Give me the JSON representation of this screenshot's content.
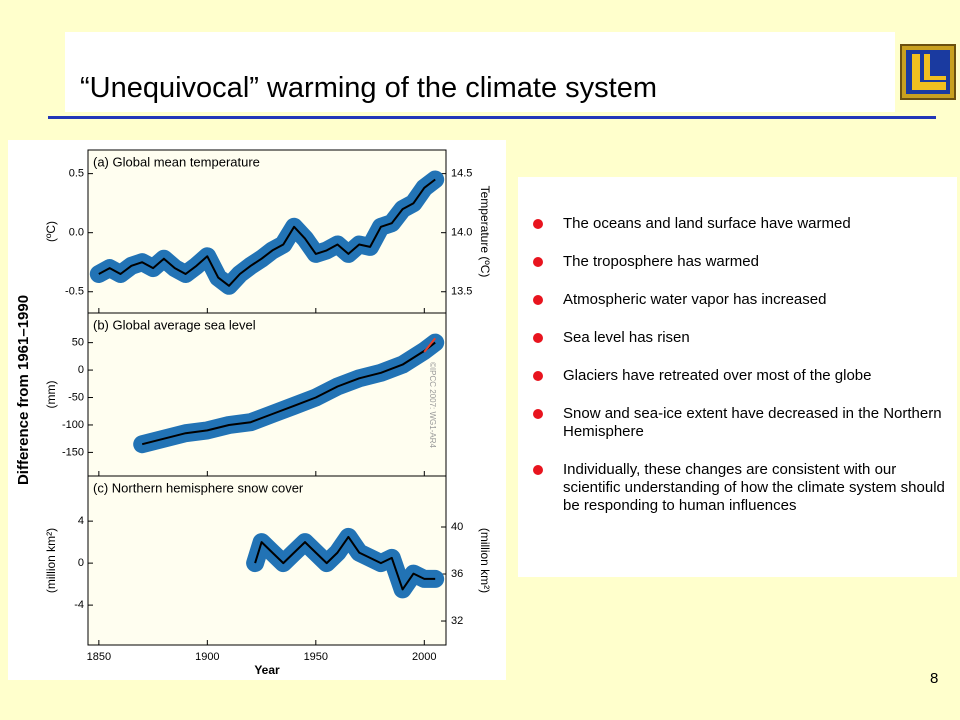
{
  "header": {
    "title": "“Unequivocal”  warming of the climate system"
  },
  "bullets": [
    "The oceans and land surface have warmed",
    "The troposphere has warmed",
    "Atmospheric water vapor has increased",
    "Sea level has risen",
    "Glaciers have retreated over most of the globe",
    "Snow and sea-ice extent have decreased in the Northern Hemisphere",
    "Individually, these changes are consistent with our scientific understanding of how the climate system should be responding to human influences"
  ],
  "page_number": "8",
  "figure": {
    "ylabel": "Difference from 1961–1990",
    "watermark": "©IPCC 2007: WG1-AR4"
  },
  "chart_data": [
    {
      "type": "line",
      "title": "(a) Global mean temperature",
      "ylabel": "(ºC)",
      "y2label": "Temperature (ºC)",
      "x": [
        1850,
        1855,
        1860,
        1865,
        1870,
        1875,
        1880,
        1885,
        1890,
        1895,
        1900,
        1905,
        1910,
        1915,
        1920,
        1925,
        1930,
        1935,
        1940,
        1945,
        1950,
        1955,
        1960,
        1965,
        1970,
        1975,
        1980,
        1985,
        1990,
        1995,
        2000,
        2005
      ],
      "series": [
        {
          "color": "#000000",
          "values": [
            -0.35,
            -0.3,
            -0.35,
            -0.28,
            -0.25,
            -0.3,
            -0.22,
            -0.3,
            -0.35,
            -0.28,
            -0.2,
            -0.38,
            -0.45,
            -0.35,
            -0.28,
            -0.22,
            -0.15,
            -0.1,
            0.05,
            -0.05,
            -0.18,
            -0.15,
            -0.1,
            -0.18,
            -0.1,
            -0.12,
            0.05,
            0.08,
            0.2,
            0.25,
            0.38,
            0.45
          ]
        }
      ],
      "band_color": "#2273b5",
      "xlim": [
        1845,
        2010
      ],
      "xticks": [
        1850,
        1900,
        1950,
        2000
      ],
      "ylim": [
        -0.68,
        0.7
      ],
      "yticks": [
        -0.5,
        {
          "value": 0,
          "label": "0.0"
        },
        0.5
      ],
      "y2lim": [
        13.32,
        14.7
      ],
      "y2ticks": [
        13.5,
        {
          "value": 14,
          "label": "14.0"
        },
        14.5
      ],
      "grid": false
    },
    {
      "type": "line",
      "title": "(b) Global average sea level",
      "ylabel": "(mm)",
      "x": [
        1870,
        1880,
        1890,
        1900,
        1910,
        1920,
        1930,
        1940,
        1950,
        1960,
        1970,
        1980,
        1990,
        2000,
        2005
      ],
      "series": [
        {
          "color": "#000000",
          "values": [
            -135,
            -125,
            -115,
            -110,
            -100,
            -95,
            -80,
            -65,
            -50,
            -30,
            -15,
            -5,
            10,
            35,
            50
          ]
        },
        {
          "color": "#e8402a",
          "values": [
            null,
            null,
            null,
            null,
            null,
            null,
            null,
            null,
            null,
            null,
            null,
            null,
            null,
            33,
            58
          ]
        }
      ],
      "band_color": "#2273b5",
      "xlim": [
        1845,
        2010
      ],
      "xticks": [
        1850,
        1900,
        1950,
        2000
      ],
      "ylim": [
        -193,
        104
      ],
      "yticks": [
        -150,
        -100,
        -50,
        0,
        50
      ],
      "grid": false
    },
    {
      "type": "line",
      "title": "(c) Northern hemisphere snow cover",
      "ylabel": "(million km²)",
      "y2label": "(million km²)",
      "xlabel": "Year",
      "x": [
        1922,
        1925,
        1930,
        1935,
        1940,
        1945,
        1950,
        1955,
        1960,
        1965,
        1970,
        1975,
        1980,
        1985,
        1990,
        1995,
        2000,
        2005
      ],
      "series": [
        {
          "color": "#000000",
          "values": [
            0,
            2,
            1,
            0,
            1,
            2,
            1,
            0,
            1,
            2.5,
            1,
            0.5,
            0,
            0.5,
            -2.5,
            -1,
            -1.5,
            -1.5
          ]
        }
      ],
      "band_color": "#2273b5",
      "xlim": [
        1845,
        2010
      ],
      "xticks": [
        1850,
        1900,
        1950,
        2000
      ],
      "ylim": [
        -7.8,
        8.3
      ],
      "yticks": [
        -4,
        0,
        4
      ],
      "y2lim": [
        29.96,
        44.34
      ],
      "y2ticks": [
        32,
        36,
        40
      ],
      "grid": false
    }
  ]
}
